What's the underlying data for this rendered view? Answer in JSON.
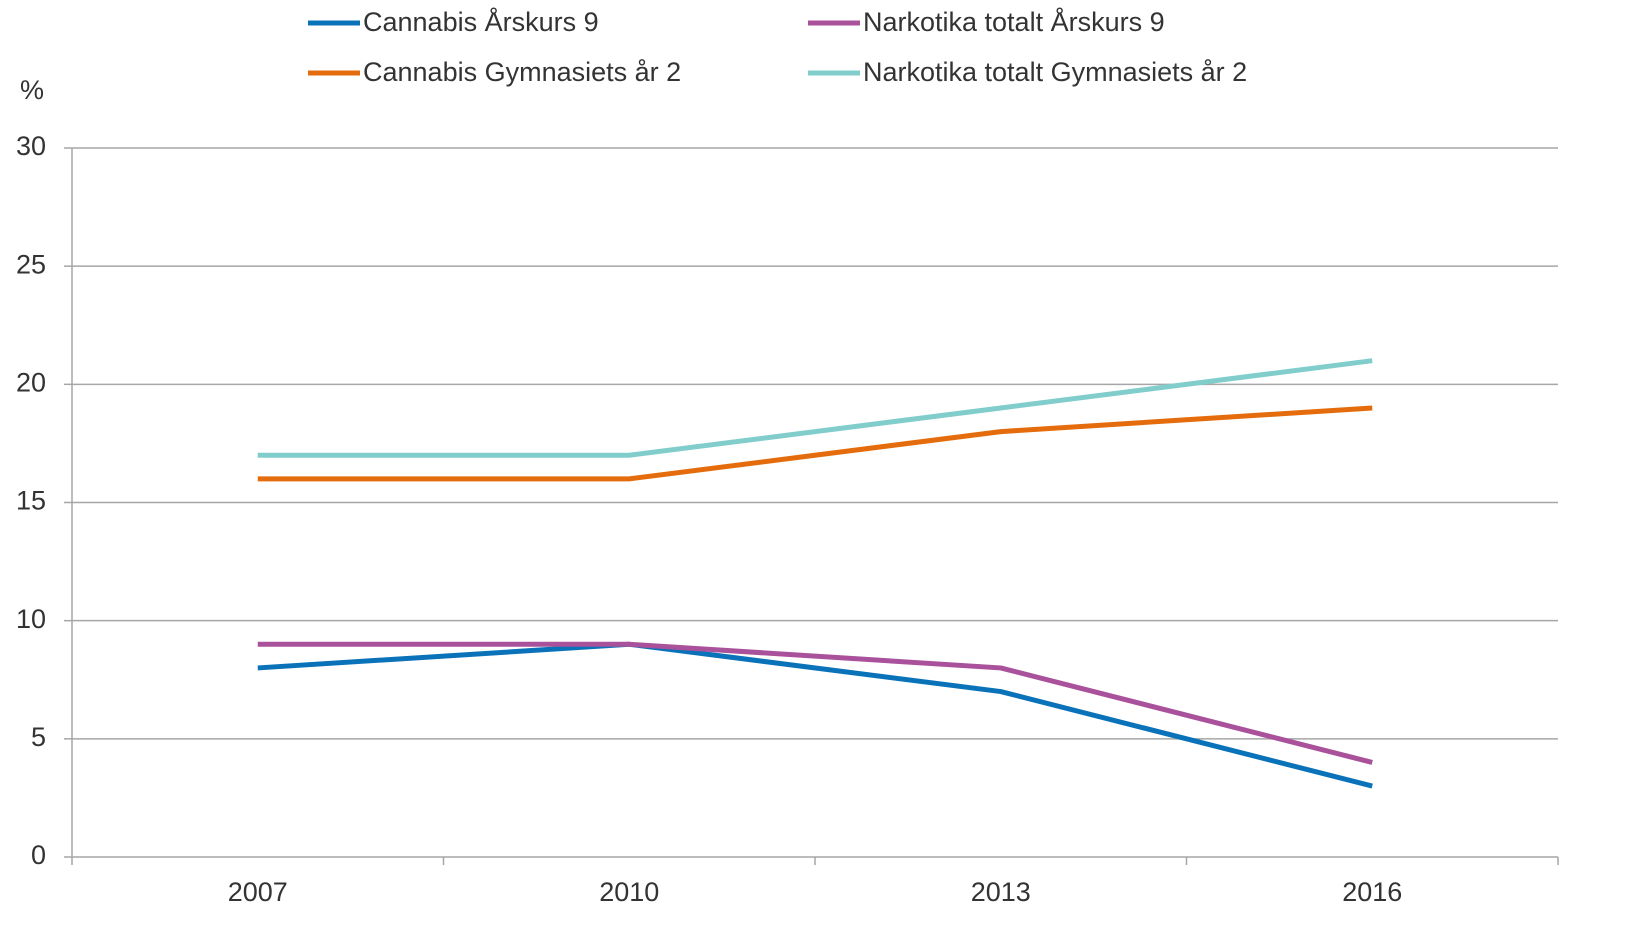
{
  "chart_data": {
    "type": "line",
    "ylabel": "%",
    "categories": [
      "2007",
      "2010",
      "2013",
      "2016"
    ],
    "series": [
      {
        "name": "Cannabis Årskurs 9",
        "color": "#0a72b9",
        "values": [
          8,
          9,
          7,
          3
        ]
      },
      {
        "name": "Narkotika totalt Årskurs 9",
        "color": "#a9529b",
        "values": [
          9,
          9,
          8,
          4
        ]
      },
      {
        "name": "Cannabis Gymnasiets år 2",
        "color": "#e46c0c",
        "values": [
          16,
          16,
          18,
          19
        ]
      },
      {
        "name": "Narkotika totalt Gymnasiets år 2",
        "color": "#80cdcc",
        "values": [
          17,
          17,
          19,
          21
        ]
      }
    ],
    "ylim": [
      0,
      30
    ],
    "yticks": [
      0,
      5,
      10,
      15,
      20,
      25,
      30
    ],
    "grid": true,
    "legend": "top"
  }
}
